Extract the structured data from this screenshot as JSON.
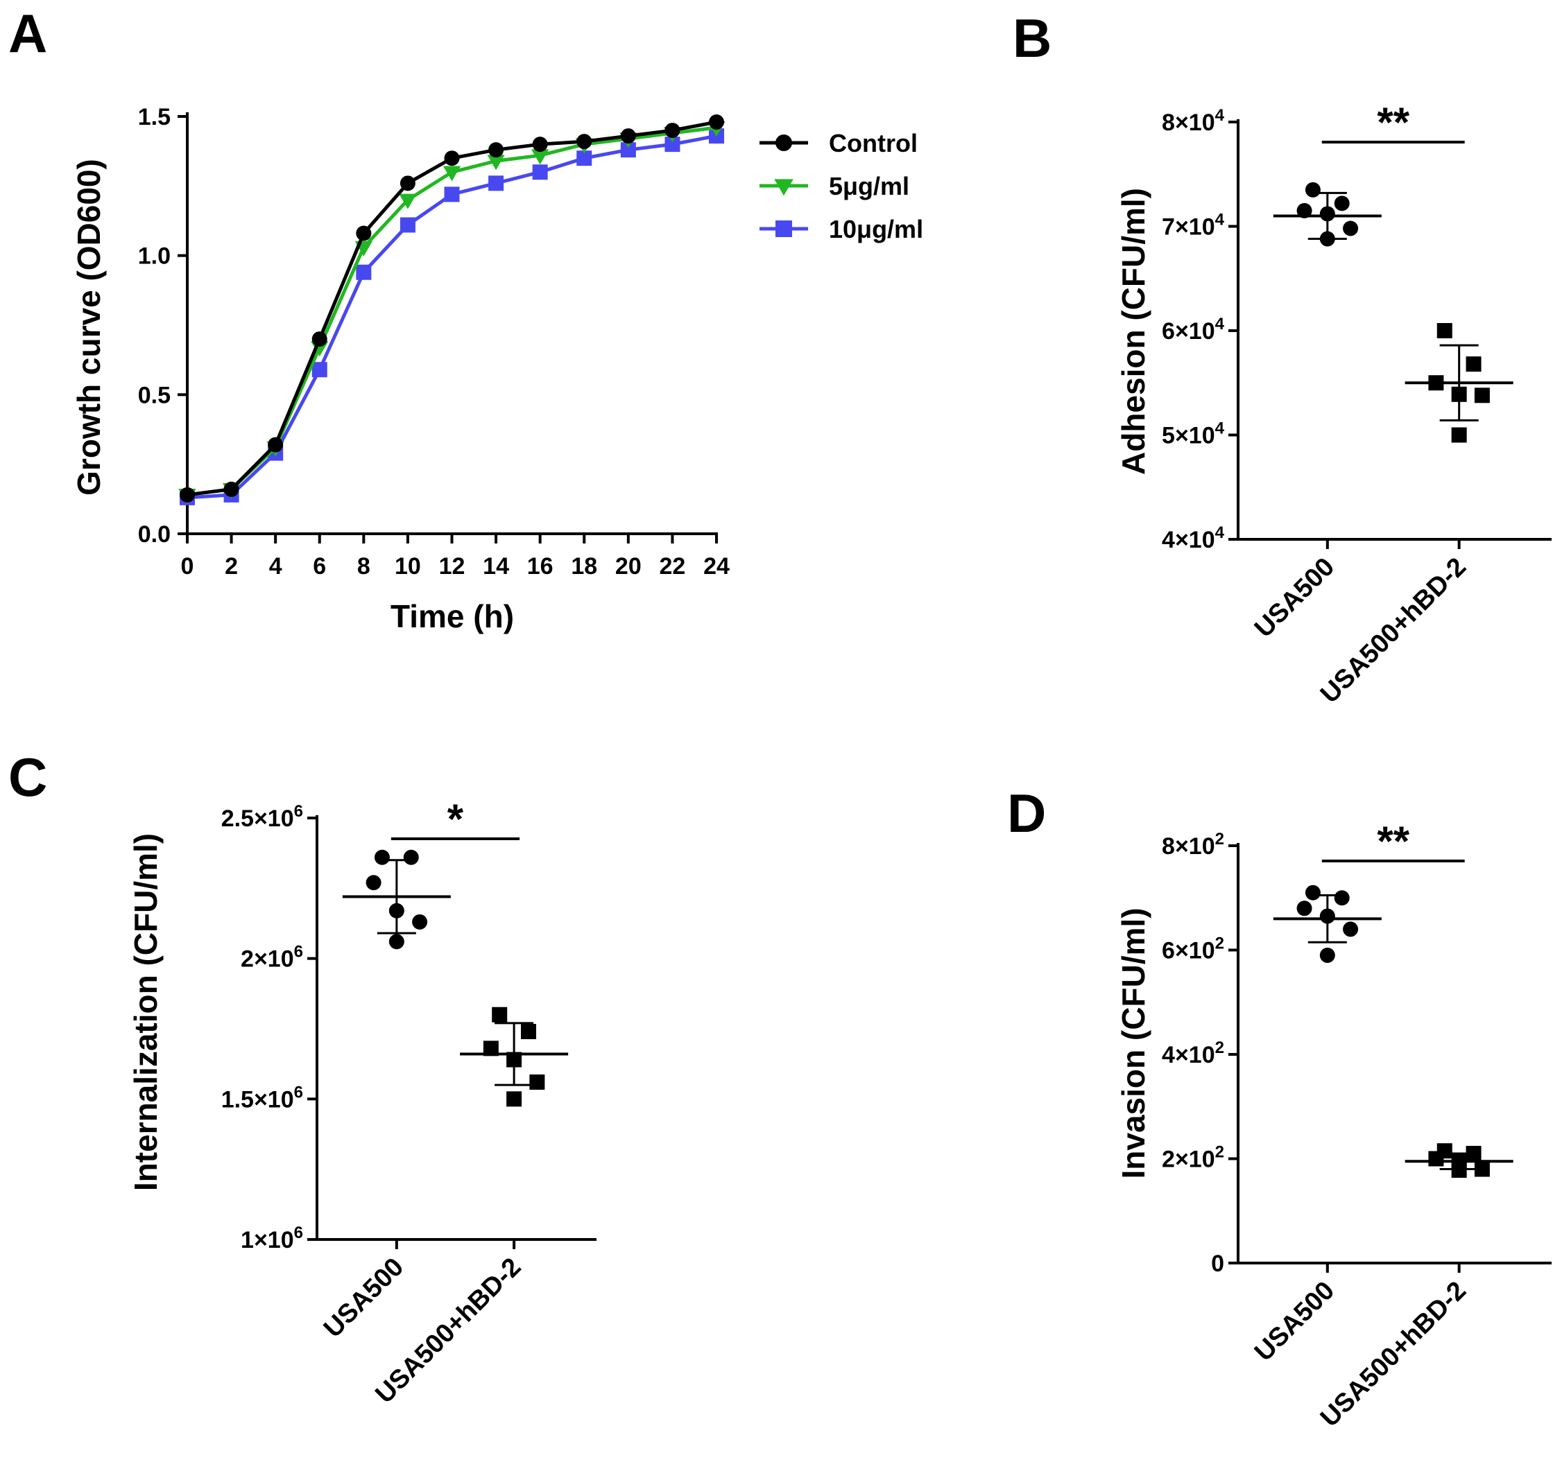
{
  "chart_data": [
    {
      "panel": "A",
      "type": "line",
      "xlabel": "Time (h)",
      "ylabel": "Growth curve (OD600)",
      "xlim": [
        0,
        24
      ],
      "ylim": [
        0,
        1.5
      ],
      "x_ticks": [
        "0",
        "2",
        "4",
        "6",
        "8",
        "10",
        "12",
        "14",
        "16",
        "18",
        "20",
        "22",
        "24"
      ],
      "y_ticks": [
        "0.0",
        "0.5",
        "1.0",
        "1.5"
      ],
      "x": [
        0,
        2,
        4,
        6,
        8,
        10,
        12,
        14,
        16,
        18,
        20,
        22,
        24
      ],
      "series": [
        {
          "name": "Control",
          "color": "#000000",
          "marker": "circle",
          "values": [
            0.14,
            0.16,
            0.32,
            0.7,
            1.08,
            1.26,
            1.35,
            1.38,
            1.4,
            1.41,
            1.43,
            1.45,
            1.48
          ]
        },
        {
          "name": "5μg/ml",
          "color": "#22b722",
          "marker": "triangle-down",
          "values": [
            0.14,
            0.16,
            0.31,
            0.67,
            1.03,
            1.2,
            1.3,
            1.34,
            1.36,
            1.4,
            1.42,
            1.44,
            1.46
          ]
        },
        {
          "name": "10μg/ml",
          "color": "#4848f0",
          "marker": "square",
          "values": [
            0.13,
            0.14,
            0.29,
            0.59,
            0.94,
            1.11,
            1.22,
            1.26,
            1.3,
            1.35,
            1.38,
            1.4,
            1.43
          ]
        }
      ],
      "legend": "top-right, outside"
    },
    {
      "panel": "B",
      "type": "scatter",
      "ylabel": "Adhesion (CFU/ml)",
      "ylim": [
        40000,
        80000
      ],
      "y_ticks": [
        {
          "mant": "4",
          "exp": "4",
          "v": 40000
        },
        {
          "mant": "5",
          "exp": "4",
          "v": 50000
        },
        {
          "mant": "6",
          "exp": "4",
          "v": 60000
        },
        {
          "mant": "7",
          "exp": "4",
          "v": 70000
        },
        {
          "mant": "8",
          "exp": "4",
          "v": 80000
        }
      ],
      "categories": [
        "USA500",
        "USA500+hBD-2"
      ],
      "groups": [
        {
          "name": "USA500",
          "marker": "circle",
          "mean": 71000,
          "sd": 2200,
          "points": [
            73500,
            72200,
            71500,
            71200,
            69800,
            68800
          ]
        },
        {
          "name": "USA500+hBD-2",
          "marker": "square",
          "mean": 55000,
          "sd": 3600,
          "points": [
            60000,
            56800,
            55000,
            53900,
            53800,
            50000
          ]
        }
      ],
      "significance": "**"
    },
    {
      "panel": "C",
      "type": "scatter",
      "ylabel": "Internalization (CFU/ml)",
      "ylim": [
        1000000,
        2500000
      ],
      "y_ticks": [
        {
          "mant": "1",
          "exp": "6",
          "v": 1000000
        },
        {
          "mant": "1.5",
          "exp": "6",
          "v": 1500000
        },
        {
          "mant": "2",
          "exp": "6",
          "v": 2000000
        },
        {
          "mant": "2.5",
          "exp": "6",
          "v": 2500000
        }
      ],
      "categories": [
        "USA500",
        "USA500+hBD-2"
      ],
      "groups": [
        {
          "name": "USA500",
          "marker": "circle",
          "mean": 2220000,
          "sd": 130000,
          "points": [
            2360000,
            2360000,
            2270000,
            2170000,
            2130000,
            2060000
          ]
        },
        {
          "name": "USA500+hBD-2",
          "marker": "square",
          "mean": 1660000,
          "sd": 110000,
          "points": [
            1800000,
            1740000,
            1680000,
            1640000,
            1560000,
            1500000
          ]
        }
      ],
      "significance": "*"
    },
    {
      "panel": "D",
      "type": "scatter",
      "ylabel": "Invasion (CFU/ml)",
      "ylim": [
        0,
        800
      ],
      "y_ticks": [
        {
          "mant": "0",
          "exp": "",
          "v": 0
        },
        {
          "mant": "2",
          "exp": "2",
          "v": 200
        },
        {
          "mant": "4",
          "exp": "2",
          "v": 400
        },
        {
          "mant": "6",
          "exp": "2",
          "v": 600
        },
        {
          "mant": "8",
          "exp": "2",
          "v": 800
        }
      ],
      "categories": [
        "USA500",
        "USA500+hBD-2"
      ],
      "groups": [
        {
          "name": "USA500",
          "marker": "circle",
          "mean": 660,
          "sd": 45,
          "points": [
            710,
            700,
            680,
            665,
            640,
            590
          ]
        },
        {
          "name": "USA500+hBD-2",
          "marker": "square",
          "mean": 195,
          "sd": 15,
          "points": [
            215,
            210,
            200,
            195,
            180,
            178
          ]
        }
      ],
      "significance": "**"
    }
  ]
}
